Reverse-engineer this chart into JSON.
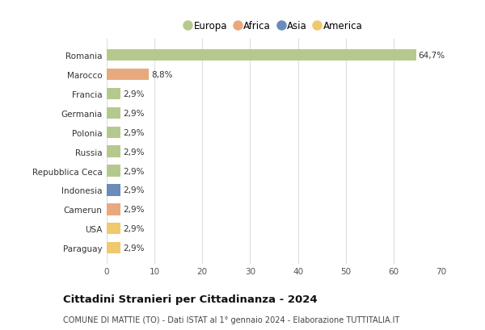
{
  "countries": [
    "Romania",
    "Marocco",
    "Francia",
    "Germania",
    "Polonia",
    "Russia",
    "Repubblica Ceca",
    "Indonesia",
    "Camerun",
    "USA",
    "Paraguay"
  ],
  "values": [
    64.7,
    8.8,
    2.9,
    2.9,
    2.9,
    2.9,
    2.9,
    2.9,
    2.9,
    2.9,
    2.9
  ],
  "labels": [
    "64,7%",
    "8,8%",
    "2,9%",
    "2,9%",
    "2,9%",
    "2,9%",
    "2,9%",
    "2,9%",
    "2,9%",
    "2,9%",
    "2,9%"
  ],
  "colors": [
    "#b5c98e",
    "#e8a97e",
    "#b5c98e",
    "#b5c98e",
    "#b5c98e",
    "#b5c98e",
    "#b5c98e",
    "#6b8cba",
    "#e8a97e",
    "#f0c96e",
    "#f0c96e"
  ],
  "legend_labels": [
    "Europa",
    "Africa",
    "Asia",
    "America"
  ],
  "legend_colors": [
    "#b5c98e",
    "#e8a97e",
    "#6b8cba",
    "#f0c96e"
  ],
  "title": "Cittadini Stranieri per Cittadinanza - 2024",
  "subtitle": "COMUNE DI MATTIE (TO) - Dati ISTAT al 1° gennaio 2024 - Elaborazione TUTTITALIA.IT",
  "xlim": [
    0,
    70
  ],
  "xticks": [
    0,
    10,
    20,
    30,
    40,
    50,
    60,
    70
  ],
  "bg_color": "#ffffff",
  "grid_color": "#dddddd",
  "bar_height": 0.6
}
